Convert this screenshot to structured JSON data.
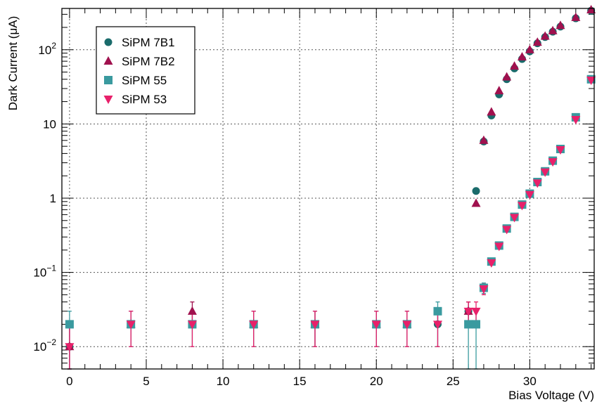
{
  "chart_data": {
    "type": "scatter",
    "xlabel": "Bias Voltage (V)",
    "ylabel": "Dark Current (μA)",
    "xlim": [
      -0.5,
      34.2
    ],
    "ylim": [
      0.005,
      360
    ],
    "y_scale": "log",
    "grid": true,
    "legend_position": "top-left",
    "x_ticks": [
      0,
      5,
      10,
      15,
      20,
      25,
      30
    ],
    "x_tick_labels": [
      "0",
      "5",
      "10",
      "15",
      "20",
      "25",
      "30"
    ],
    "y_ticks": [
      0.01,
      0.1,
      1,
      10,
      100
    ],
    "y_tick_labels": [
      {
        "base": "10",
        "exp": "−2"
      },
      {
        "base": "10",
        "exp": "−1"
      },
      {
        "base": "1",
        "exp": ""
      },
      {
        "base": "10",
        "exp": ""
      },
      {
        "base": "10",
        "exp": "2"
      }
    ],
    "series": [
      {
        "name": "SiPM 7B1",
        "marker": "circle",
        "color": "#1a6b6b",
        "points": [
          {
            "x": 0,
            "y": 0.01,
            "lo": 0.005,
            "hi": 0.02
          },
          {
            "x": 24,
            "y": 0.02,
            "lo": 0.01,
            "hi": 0.03
          },
          {
            "x": 26,
            "y": 0.03,
            "lo": 0.02,
            "hi": 0.04
          },
          {
            "x": 26.5,
            "y": 1.25
          },
          {
            "x": 27,
            "y": 5.8
          },
          {
            "x": 27.5,
            "y": 13
          },
          {
            "x": 28,
            "y": 25
          },
          {
            "x": 28.5,
            "y": 40
          },
          {
            "x": 29,
            "y": 56
          },
          {
            "x": 29.5,
            "y": 75
          },
          {
            "x": 30,
            "y": 95
          },
          {
            "x": 30.5,
            "y": 122
          },
          {
            "x": 31,
            "y": 148
          },
          {
            "x": 31.5,
            "y": 175
          },
          {
            "x": 32,
            "y": 205
          },
          {
            "x": 33,
            "y": 265
          },
          {
            "x": 34,
            "y": 335
          }
        ]
      },
      {
        "name": "SiPM 7B2",
        "marker": "triangle-up",
        "color": "#a0114e",
        "points": [
          {
            "x": 0,
            "y": 0.01,
            "lo": 0.005,
            "hi": 0.02
          },
          {
            "x": 4,
            "y": 0.02,
            "lo": 0.01,
            "hi": 0.03
          },
          {
            "x": 8,
            "y": 0.03,
            "lo": 0.02,
            "hi": 0.04
          },
          {
            "x": 12,
            "y": 0.02,
            "lo": 0.01,
            "hi": 0.03
          },
          {
            "x": 16,
            "y": 0.02,
            "lo": 0.01,
            "hi": 0.03
          },
          {
            "x": 20,
            "y": 0.02,
            "lo": 0.01,
            "hi": 0.03
          },
          {
            "x": 22,
            "y": 0.02,
            "lo": 0.01,
            "hi": 0.03
          },
          {
            "x": 26,
            "y": 0.03,
            "lo": 0.02,
            "hi": 0.04
          },
          {
            "x": 26.5,
            "y": 0.85
          },
          {
            "x": 27,
            "y": 6
          },
          {
            "x": 27.5,
            "y": 14.5
          },
          {
            "x": 28,
            "y": 28
          },
          {
            "x": 28.5,
            "y": 43
          },
          {
            "x": 29,
            "y": 60
          },
          {
            "x": 29.5,
            "y": 80
          },
          {
            "x": 30,
            "y": 100
          },
          {
            "x": 30.5,
            "y": 126
          },
          {
            "x": 31,
            "y": 152
          },
          {
            "x": 31.5,
            "y": 180
          },
          {
            "x": 32,
            "y": 212
          },
          {
            "x": 33,
            "y": 272
          },
          {
            "x": 34,
            "y": 345
          }
        ]
      },
      {
        "name": "SiPM 55",
        "marker": "square",
        "color": "#3a9a9f",
        "points": [
          {
            "x": 0,
            "y": 0.02,
            "lo": 0.005,
            "hi": 0.03
          },
          {
            "x": 4,
            "y": 0.02,
            "lo": 0.01,
            "hi": 0.03
          },
          {
            "x": 8,
            "y": 0.02,
            "lo": 0.01,
            "hi": 0.03
          },
          {
            "x": 12,
            "y": 0.02,
            "lo": 0.01,
            "hi": 0.03
          },
          {
            "x": 16,
            "y": 0.02,
            "lo": 0.01,
            "hi": 0.03
          },
          {
            "x": 20,
            "y": 0.02,
            "lo": 0.01,
            "hi": 0.03
          },
          {
            "x": 22,
            "y": 0.02,
            "lo": 0.01,
            "hi": 0.03
          },
          {
            "x": 24,
            "y": 0.03,
            "lo": 0.02,
            "hi": 0.04
          },
          {
            "x": 26,
            "y": 0.02,
            "lo": 0.005,
            "hi": 0.03
          },
          {
            "x": 26.5,
            "y": 0.02,
            "lo": 0.005,
            "hi": 0.03
          },
          {
            "x": 27,
            "y": 0.062,
            "lo": 0.052,
            "hi": 0.072
          },
          {
            "x": 27.5,
            "y": 0.14
          },
          {
            "x": 28,
            "y": 0.23
          },
          {
            "x": 28.5,
            "y": 0.39
          },
          {
            "x": 29,
            "y": 0.56
          },
          {
            "x": 29.5,
            "y": 0.82
          },
          {
            "x": 30,
            "y": 1.15
          },
          {
            "x": 30.5,
            "y": 1.65
          },
          {
            "x": 31,
            "y": 2.3
          },
          {
            "x": 31.5,
            "y": 3.2
          },
          {
            "x": 32,
            "y": 4.6
          },
          {
            "x": 33,
            "y": 12.3
          },
          {
            "x": 34,
            "y": 40
          }
        ]
      },
      {
        "name": "SiPM 53",
        "marker": "triangle-down",
        "color": "#e8206a",
        "points": [
          {
            "x": 0,
            "y": 0.01,
            "lo": 0.005,
            "hi": 0.02
          },
          {
            "x": 4,
            "y": 0.02,
            "lo": 0.01,
            "hi": 0.03
          },
          {
            "x": 8,
            "y": 0.02,
            "lo": 0.01,
            "hi": 0.03
          },
          {
            "x": 12,
            "y": 0.02,
            "lo": 0.01,
            "hi": 0.03
          },
          {
            "x": 16,
            "y": 0.02,
            "lo": 0.01,
            "hi": 0.03
          },
          {
            "x": 20,
            "y": 0.02,
            "lo": 0.01,
            "hi": 0.03
          },
          {
            "x": 22,
            "y": 0.02,
            "lo": 0.01,
            "hi": 0.03
          },
          {
            "x": 24,
            "y": 0.02,
            "lo": 0.01,
            "hi": 0.03
          },
          {
            "x": 26,
            "y": 0.03,
            "lo": 0.02,
            "hi": 0.04
          },
          {
            "x": 26.5,
            "y": 0.03,
            "lo": 0.02,
            "hi": 0.04
          },
          {
            "x": 27,
            "y": 0.06,
            "lo": 0.05,
            "hi": 0.07
          },
          {
            "x": 27.5,
            "y": 0.135
          },
          {
            "x": 28,
            "y": 0.225
          },
          {
            "x": 28.5,
            "y": 0.38
          },
          {
            "x": 29,
            "y": 0.55
          },
          {
            "x": 29.5,
            "y": 0.8
          },
          {
            "x": 30,
            "y": 1.12
          },
          {
            "x": 30.5,
            "y": 1.6
          },
          {
            "x": 31,
            "y": 2.25
          },
          {
            "x": 31.5,
            "y": 3.1
          },
          {
            "x": 32,
            "y": 4.5
          },
          {
            "x": 33,
            "y": 11.5
          },
          {
            "x": 34,
            "y": 39
          }
        ]
      }
    ]
  }
}
